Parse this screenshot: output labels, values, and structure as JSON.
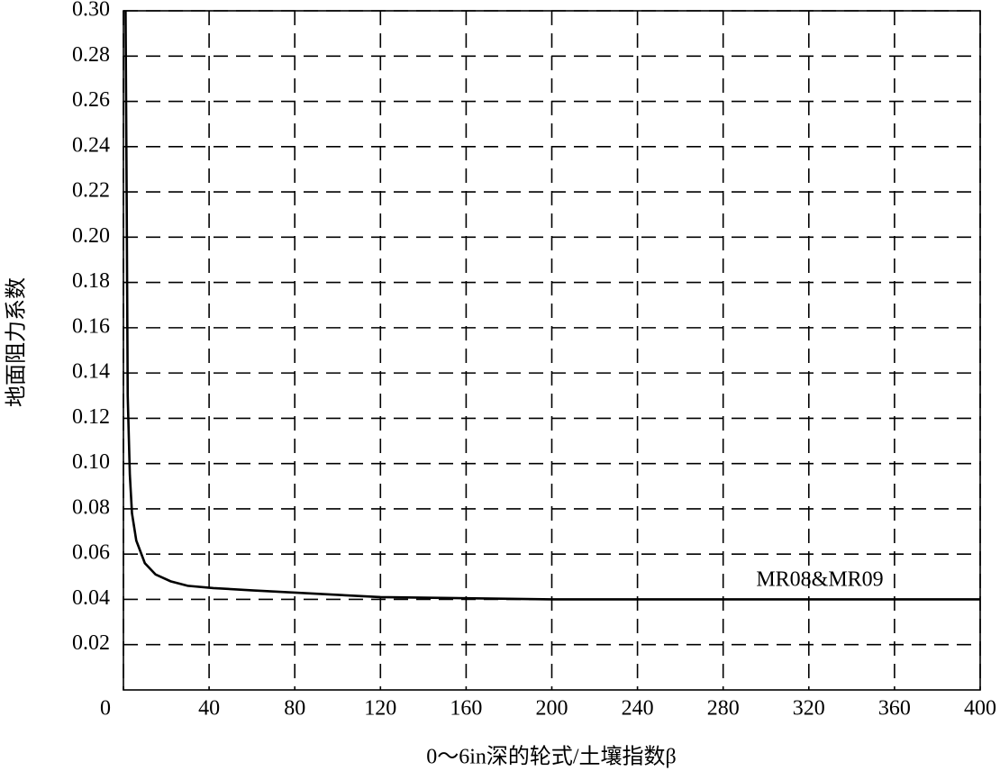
{
  "chart_data": {
    "type": "line",
    "x_label": "0～6in深的轮式/土壤指数β",
    "y_label": "地面阻力系数",
    "x": [
      1,
      1.5,
      2,
      3,
      4,
      6,
      10,
      15,
      22,
      30,
      42,
      60,
      80,
      100,
      120,
      160,
      200,
      280,
      400
    ],
    "series": [
      {
        "name": "MR08&MR09",
        "color": "#000000",
        "values": [
          0.3,
          0.22,
          0.13,
          0.095,
          0.078,
          0.066,
          0.056,
          0.051,
          0.048,
          0.046,
          0.045,
          0.044,
          0.043,
          0.042,
          0.041,
          0.0405,
          0.04,
          0.04,
          0.04
        ]
      }
    ],
    "xlim": [
      0,
      400
    ],
    "xticks": [
      0,
      40,
      80,
      120,
      160,
      200,
      240,
      280,
      320,
      360,
      400
    ],
    "ylim": [
      0,
      0.3
    ],
    "yticks": [
      0.02,
      0.04,
      0.06,
      0.08,
      {
        "value": 0.1,
        "label": "0.10"
      },
      0.12,
      0.14,
      0.16,
      0.18,
      {
        "value": 0.2,
        "label": "0.20"
      },
      0.22,
      0.24,
      0.26,
      0.28,
      {
        "value": 0.3,
        "label": "0.30"
      }
    ],
    "grid": true
  }
}
